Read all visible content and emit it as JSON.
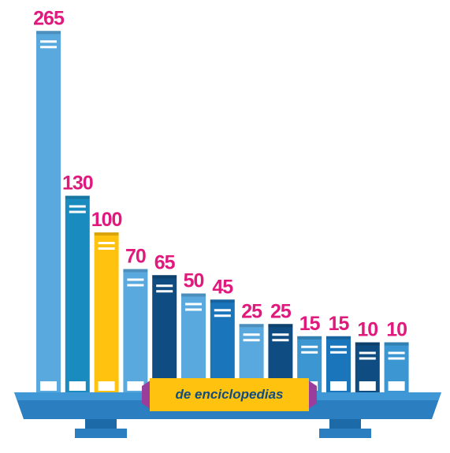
{
  "chart_data": {
    "type": "bar",
    "values": [
      265,
      130,
      100,
      70,
      65,
      50,
      45,
      25,
      25,
      15,
      15,
      10,
      10
    ],
    "colors": [
      "#5aa9de",
      "#1a8bbf",
      "#ffc20e",
      "#5aa9de",
      "#0f4c81",
      "#5aa9de",
      "#1b75bb",
      "#5aa9de",
      "#0f4c81",
      "#3b96d2",
      "#1b75bb",
      "#0f4c81",
      "#3b96d2"
    ],
    "label_color": "#e0197d",
    "annotation": "de enciclopedias"
  }
}
